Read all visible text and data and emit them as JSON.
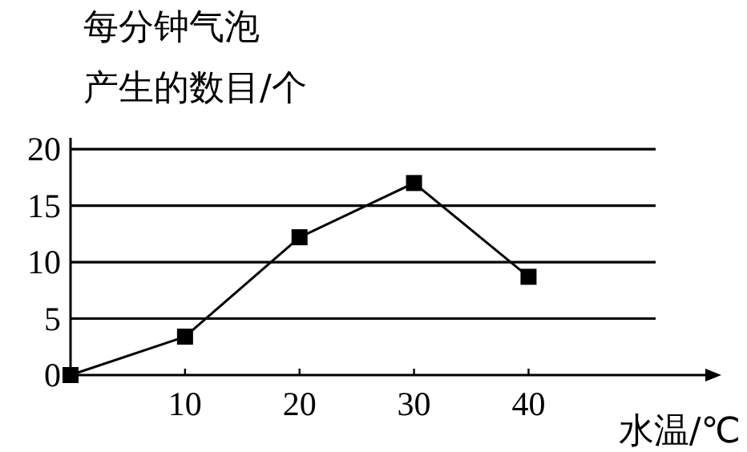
{
  "chart_data": {
    "type": "line",
    "xlabel": "水温/℃",
    "ylabel": "每分钟气泡产生的数目/个",
    "x": [
      0,
      10,
      20,
      30,
      40
    ],
    "series": [
      {
        "color": "#000000",
        "values": [
          0,
          3.4,
          12.2,
          17,
          8.7
        ]
      }
    ],
    "xlim": [
      0,
      56
    ],
    "ylim": [
      0,
      21
    ],
    "xticks": [
      10,
      20,
      30,
      40
    ],
    "yticks": [
      0,
      5,
      10,
      15,
      20
    ],
    "grid": "y",
    "marker": "square",
    "line_style": "solid"
  }
}
